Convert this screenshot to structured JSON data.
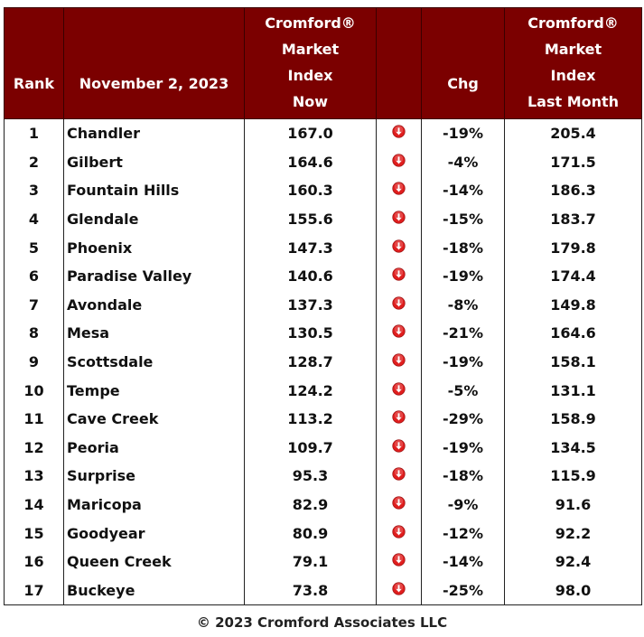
{
  "header": {
    "rank": "Rank",
    "date": "November 2, 2023",
    "now_lines": [
      "Cromford®",
      "Market",
      "Index",
      "Now"
    ],
    "chg": "Chg",
    "last_lines": [
      "Cromford®",
      "Market",
      "Index",
      "Last Month"
    ]
  },
  "chart_data": {
    "type": "table",
    "columns": [
      "Rank",
      "November 2, 2023",
      "Cromford® Market Index Now",
      "",
      "Chg",
      "Cromford® Market Index Last Month"
    ],
    "rows": [
      {
        "rank": "1",
        "city": "Chandler",
        "now": "167.0",
        "direction": "down-arrow-icon",
        "chg": "-19%",
        "last": "205.4"
      },
      {
        "rank": "2",
        "city": "Gilbert",
        "now": "164.6",
        "direction": "down-arrow-icon",
        "chg": "-4%",
        "last": "171.5"
      },
      {
        "rank": "3",
        "city": "Fountain Hills",
        "now": "160.3",
        "direction": "down-arrow-icon",
        "chg": "-14%",
        "last": "186.3"
      },
      {
        "rank": "4",
        "city": "Glendale",
        "now": "155.6",
        "direction": "down-arrow-icon",
        "chg": "-15%",
        "last": "183.7"
      },
      {
        "rank": "5",
        "city": "Phoenix",
        "now": "147.3",
        "direction": "down-arrow-icon",
        "chg": "-18%",
        "last": "179.8"
      },
      {
        "rank": "6",
        "city": "Paradise Valley",
        "now": "140.6",
        "direction": "down-arrow-icon",
        "chg": "-19%",
        "last": "174.4"
      },
      {
        "rank": "7",
        "city": "Avondale",
        "now": "137.3",
        "direction": "down-arrow-icon",
        "chg": "-8%",
        "last": "149.8"
      },
      {
        "rank": "8",
        "city": "Mesa",
        "now": "130.5",
        "direction": "down-arrow-icon",
        "chg": "-21%",
        "last": "164.6"
      },
      {
        "rank": "9",
        "city": "Scottsdale",
        "now": "128.7",
        "direction": "down-arrow-icon",
        "chg": "-19%",
        "last": "158.1"
      },
      {
        "rank": "10",
        "city": "Tempe",
        "now": "124.2",
        "direction": "down-arrow-icon",
        "chg": "-5%",
        "last": "131.1"
      },
      {
        "rank": "11",
        "city": "Cave Creek",
        "now": "113.2",
        "direction": "down-arrow-icon",
        "chg": "-29%",
        "last": "158.9"
      },
      {
        "rank": "12",
        "city": "Peoria",
        "now": "109.7",
        "direction": "down-arrow-icon",
        "chg": "-19%",
        "last": "134.5"
      },
      {
        "rank": "13",
        "city": "Surprise",
        "now": "95.3",
        "direction": "down-arrow-icon",
        "chg": "-18%",
        "last": "115.9"
      },
      {
        "rank": "14",
        "city": "Maricopa",
        "now": "82.9",
        "direction": "down-arrow-icon",
        "chg": "-9%",
        "last": "91.6"
      },
      {
        "rank": "15",
        "city": "Goodyear",
        "now": "80.9",
        "direction": "down-arrow-icon",
        "chg": "-12%",
        "last": "92.2"
      },
      {
        "rank": "16",
        "city": "Queen Creek",
        "now": "79.1",
        "direction": "down-arrow-icon",
        "chg": "-14%",
        "last": "92.4"
      },
      {
        "rank": "17",
        "city": "Buckeye",
        "now": "73.8",
        "direction": "down-arrow-icon",
        "chg": "-25%",
        "last": "98.0"
      }
    ]
  },
  "colors": {
    "header_bg": "#7b0000",
    "header_text": "#ffffff",
    "arrow_fill": "#e01e1e"
  },
  "footer": "© 2023 Cromford Associates LLC"
}
